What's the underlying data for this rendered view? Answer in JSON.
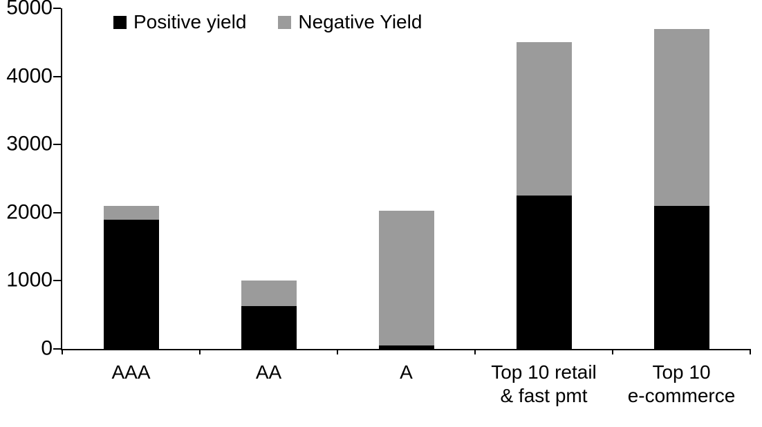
{
  "chart_data": {
    "type": "bar",
    "stacked": true,
    "title": "",
    "xlabel": "",
    "ylabel": "",
    "categories": [
      "AAA",
      "AA",
      "A",
      "Top 10 retail\n& fast pmt",
      "Top 10\ne-commerce"
    ],
    "series": [
      {
        "name": "Positive yield",
        "color": "#000000",
        "values": [
          1900,
          630,
          50,
          2250,
          2100
        ]
      },
      {
        "name": "Negative Yield",
        "color": "#9b9b9b",
        "values": [
          200,
          370,
          1980,
          2250,
          2600
        ]
      }
    ],
    "totals": [
      2100,
      1000,
      2030,
      4500,
      4700
    ],
    "ylim": [
      0,
      5000
    ],
    "yticks": [
      0,
      1000,
      2000,
      3000,
      4000,
      5000
    ],
    "grid": false,
    "legend_position": "top-left-inside",
    "colors": {
      "background": "#ffffff",
      "axis": "#000000"
    }
  }
}
